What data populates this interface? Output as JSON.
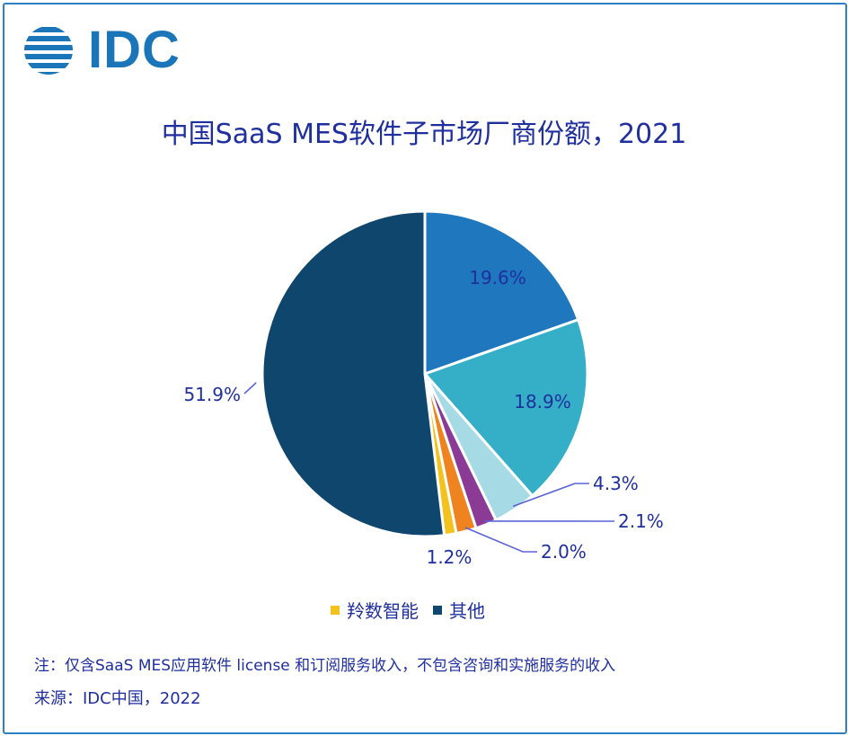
{
  "logo": {
    "text": "IDC",
    "color": "#1b76b9"
  },
  "chart_data": {
    "type": "pie",
    "title": "中国SaaS MES软件子市场厂商份额，2021",
    "slices": [
      {
        "label": "19.6%",
        "value": 19.6,
        "color": "#1f78be"
      },
      {
        "label": "18.9%",
        "value": 18.9,
        "color": "#35afc8"
      },
      {
        "label": "4.3%",
        "value": 4.3,
        "color": "#a6dbe6"
      },
      {
        "label": "2.1%",
        "value": 2.1,
        "color": "#8b3a96"
      },
      {
        "label": "2.0%",
        "value": 2.0,
        "color": "#ef8320"
      },
      {
        "label": "1.2%",
        "value": 1.2,
        "color": "#f3c21c",
        "name": "羚数智能"
      },
      {
        "label": "51.9%",
        "value": 51.9,
        "color": "#0f466e",
        "name": "其他"
      }
    ],
    "legend": [
      {
        "name": "羚数智能",
        "color": "#f3c21c"
      },
      {
        "name": "其他",
        "color": "#0f466e"
      }
    ],
    "legend_placement": "bottom"
  },
  "note": "注：仅含SaaS MES应用软件 license 和订阅服务收入，不包含咨询和实施服务的收入",
  "source": "来源：IDC中国，2022"
}
